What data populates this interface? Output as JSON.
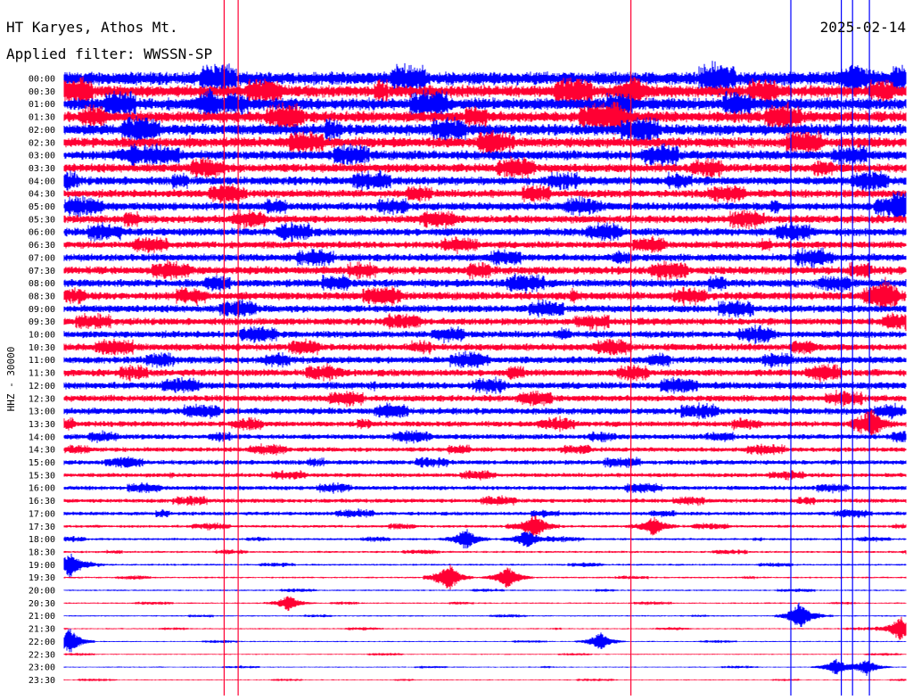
{
  "header": {
    "station": "HT Karyes, Athos Mt.",
    "date": "2025-02-14",
    "filter": "Applied filter: WWSSN-SP"
  },
  "chart_data": {
    "type": "line",
    "title": "HT Karyes, Athos Mt.",
    "ylabel": "HHZ - 30000",
    "y_tick_labels": [
      "00:00",
      "00:30",
      "01:00",
      "01:30",
      "02:00",
      "02:30",
      "03:00",
      "03:30",
      "04:00",
      "04:30",
      "05:00",
      "05:30",
      "06:00",
      "06:30",
      "07:00",
      "07:30",
      "08:00",
      "08:30",
      "09:00",
      "09:30",
      "10:00",
      "10:30",
      "11:00",
      "11:30",
      "12:00",
      "12:30",
      "13:00",
      "13:30",
      "14:00",
      "14:30",
      "15:00",
      "15:30",
      "16:00",
      "16:30",
      "17:00",
      "17:30",
      "18:00",
      "18:30",
      "19:00",
      "19:30",
      "20:00",
      "20:30",
      "21:00",
      "21:30",
      "22:00",
      "22:30",
      "23:00",
      "23:30"
    ],
    "trace_colors": [
      "#0000ff",
      "#ff0033"
    ],
    "activity_level": [
      1.4,
      1.3,
      1.3,
      1.2,
      1.2,
      1.1,
      1.0,
      0.95,
      0.9,
      0.85,
      0.85,
      0.85,
      0.85,
      0.75,
      0.8,
      0.85,
      0.85,
      0.85,
      0.8,
      0.75,
      0.75,
      0.75,
      0.75,
      0.75,
      0.75,
      0.7,
      0.7,
      0.6,
      0.55,
      0.5,
      0.5,
      0.45,
      0.45,
      0.45,
      0.4,
      0.3,
      0.25,
      0.22,
      0.2,
      0.18,
      0.16,
      0.15,
      0.15,
      0.14,
      0.13,
      0.12,
      0.12,
      0.12
    ],
    "full_scale_lines": [
      {
        "row": 0,
        "minute": 5.7,
        "color": "#ff0033"
      },
      {
        "row": 0,
        "minute": 6.2,
        "color": "#ff0033"
      },
      {
        "row": 0,
        "minute": 20.2,
        "color": "#ff0033"
      },
      {
        "row": 0,
        "minute": 25.9,
        "color": "#0000ff"
      },
      {
        "row": 0,
        "minute": 27.7,
        "color": "#0000ff"
      },
      {
        "row": 0,
        "minute": 28.1,
        "color": "#0000ff"
      },
      {
        "row": 0,
        "minute": 28.7,
        "color": "#0000ff"
      }
    ],
    "events": [
      {
        "row": 0,
        "minute": 28.2,
        "amp": 1.0
      },
      {
        "row": 1,
        "minute": 20.3,
        "amp": 0.9
      },
      {
        "row": 2,
        "minute": 5.2,
        "amp": 0.8
      },
      {
        "row": 3,
        "minute": 19.6,
        "amp": 1.0
      },
      {
        "row": 6,
        "minute": 2.5,
        "amp": 0.7
      },
      {
        "row": 10,
        "minute": 29.8,
        "amp": 0.8
      },
      {
        "row": 17,
        "minute": 29.3,
        "amp": 0.7
      },
      {
        "row": 27,
        "minute": 28.8,
        "amp": 0.9
      },
      {
        "row": 35,
        "minute": 16.8,
        "amp": 0.9
      },
      {
        "row": 35,
        "minute": 21.0,
        "amp": 0.7
      },
      {
        "row": 36,
        "minute": 14.3,
        "amp": 0.8
      },
      {
        "row": 36,
        "minute": 16.5,
        "amp": 0.7
      },
      {
        "row": 38,
        "minute": 0.2,
        "amp": 0.9
      },
      {
        "row": 39,
        "minute": 13.7,
        "amp": 1.0
      },
      {
        "row": 39,
        "minute": 15.8,
        "amp": 0.9
      },
      {
        "row": 41,
        "minute": 8.0,
        "amp": 0.6
      },
      {
        "row": 42,
        "minute": 26.2,
        "amp": 1.0
      },
      {
        "row": 43,
        "minute": 29.8,
        "amp": 1.0
      },
      {
        "row": 44,
        "minute": 0.2,
        "amp": 1.0
      },
      {
        "row": 44,
        "minute": 19.1,
        "amp": 0.7
      },
      {
        "row": 46,
        "minute": 27.5,
        "amp": 0.6
      },
      {
        "row": 46,
        "minute": 28.6,
        "amp": 0.6
      }
    ]
  }
}
